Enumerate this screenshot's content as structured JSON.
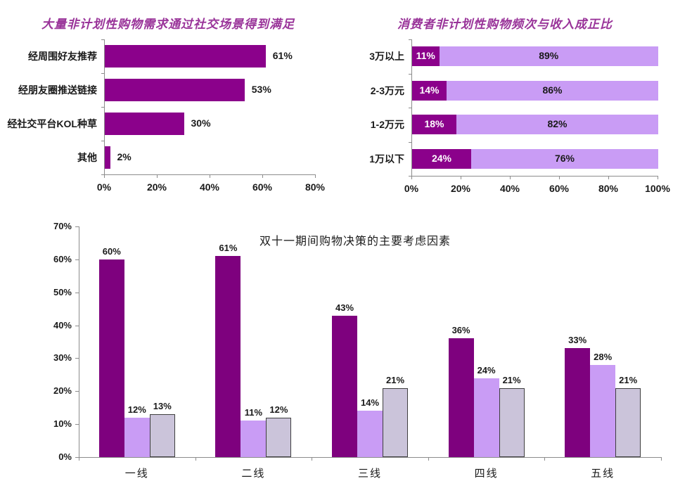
{
  "colors": {
    "title_purple": "#993399",
    "dark_purple": "#8B018B",
    "dark_purple_bottom": "#7E017E",
    "light_purple": "#C99CF5",
    "gray_lavender": "#CBC4DA",
    "gray_border": "#3F3F3F",
    "axis": "#8C8C8C",
    "label_dark": "#1a1a1a",
    "label_light": "#ffffff"
  },
  "chart_data": [
    {
      "id": "social",
      "type": "bar",
      "subtype": "horizontal",
      "title": "大量非计划性购物需求通过社交场景得到满足",
      "categories": [
        "经周围好友推荐",
        "经朋友圈推送链接",
        "经社交平台KOL种草",
        "其他"
      ],
      "values": [
        61,
        53,
        30,
        2
      ],
      "value_labels": [
        "61%",
        "53%",
        "30%",
        "2%"
      ],
      "xlim": [
        0,
        80
      ],
      "xtick_values": [
        0,
        20,
        40,
        60,
        80
      ],
      "xtick_labels": [
        "0%",
        "20%",
        "40%",
        "60%",
        "80%"
      ],
      "grid": false,
      "legend": false
    },
    {
      "id": "income",
      "type": "bar",
      "subtype": "stacked-horizontal",
      "title": "消费者非计划性购物频次与收入成正比",
      "categories": [
        "3万以上",
        "2-3万元",
        "1-2万元",
        "1万以下"
      ],
      "series": [
        {
          "values": [
            11,
            14,
            18,
            24
          ],
          "labels": [
            "11%",
            "14%",
            "18%",
            "24%"
          ]
        },
        {
          "values": [
            89,
            86,
            82,
            76
          ],
          "labels": [
            "89%",
            "86%",
            "82%",
            "76%"
          ]
        }
      ],
      "xlim": [
        0,
        100
      ],
      "xtick_values": [
        0,
        20,
        40,
        60,
        80,
        100
      ],
      "xtick_labels": [
        "0%",
        "20%",
        "40%",
        "60%",
        "80%",
        "100%"
      ],
      "grid": false,
      "legend": false
    },
    {
      "id": "decision",
      "type": "bar",
      "subtype": "grouped-vertical",
      "title": "双十一期间购物决策的主要考虑因素",
      "categories": [
        "一线",
        "二线",
        "三线",
        "四线",
        "五线"
      ],
      "series": [
        {
          "values": [
            60,
            61,
            43,
            36,
            33
          ],
          "labels": [
            "60%",
            "61%",
            "43%",
            "36%",
            "33%"
          ]
        },
        {
          "values": [
            12,
            11,
            14,
            24,
            28
          ],
          "labels": [
            "12%",
            "11%",
            "14%",
            "24%",
            "28%"
          ]
        },
        {
          "values": [
            13,
            12,
            21,
            21,
            21
          ],
          "labels": [
            "13%",
            "12%",
            "21%",
            "21%",
            "21%"
          ]
        }
      ],
      "ylim": [
        0,
        70
      ],
      "ytick_values": [
        0,
        10,
        20,
        30,
        40,
        50,
        60,
        70
      ],
      "ytick_labels": [
        "0%",
        "10%",
        "20%",
        "30%",
        "40%",
        "50%",
        "60%",
        "70%"
      ],
      "grid": false,
      "legend": false
    }
  ]
}
